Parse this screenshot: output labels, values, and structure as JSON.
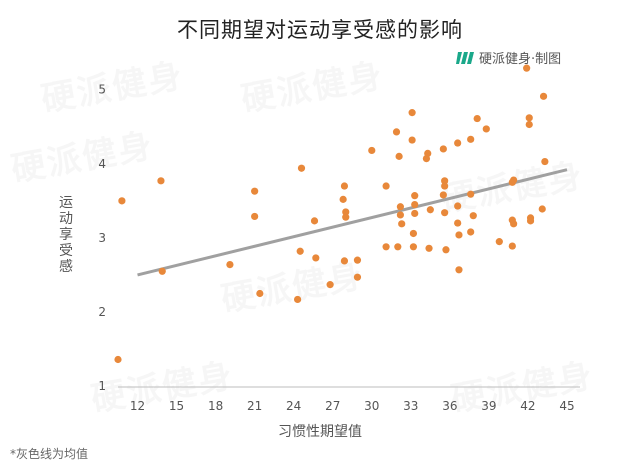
{
  "title": "不同期望对运动享受感的影响",
  "brand": {
    "name": "硬派健身·制图",
    "logo_icon": "leaf-stripes-logo",
    "accent": "#1aa88a"
  },
  "footnote": "*灰色线为均值",
  "watermark_text": "硬派健身",
  "chart_data": {
    "type": "scatter",
    "title": "不同期望对运动享受感的影响",
    "xlabel": "习惯性期望值",
    "ylabel": "运动享受感",
    "xlim": [
      10.5,
      46
    ],
    "ylim": [
      0.8,
      5.4
    ],
    "xticks": [
      12,
      15,
      18,
      21,
      24,
      27,
      30,
      33,
      36,
      39,
      42,
      45
    ],
    "yticks": [
      1,
      2,
      3,
      4,
      5
    ],
    "grid": false,
    "point_color": "#e8883a",
    "trend_color": "#a0a0a0",
    "trend_line": {
      "x": [
        12.0,
        45.0
      ],
      "y": [
        2.5,
        3.92
      ]
    },
    "points": [
      [
        10.5,
        1.36
      ],
      [
        10.8,
        3.5
      ],
      [
        13.8,
        3.77
      ],
      [
        13.9,
        2.55
      ],
      [
        19.1,
        2.64
      ],
      [
        21.0,
        3.63
      ],
      [
        21.0,
        3.29
      ],
      [
        21.4,
        2.25
      ],
      [
        24.3,
        2.17
      ],
      [
        24.5,
        2.82
      ],
      [
        24.6,
        3.94
      ],
      [
        25.6,
        3.23
      ],
      [
        25.7,
        2.73
      ],
      [
        26.8,
        2.37
      ],
      [
        27.9,
        3.7
      ],
      [
        27.8,
        3.52
      ],
      [
        28.0,
        3.35
      ],
      [
        28.0,
        3.28
      ],
      [
        27.9,
        2.69
      ],
      [
        28.9,
        2.7
      ],
      [
        28.9,
        2.47
      ],
      [
        30.0,
        4.18
      ],
      [
        31.1,
        3.7
      ],
      [
        31.1,
        2.88
      ],
      [
        31.9,
        4.43
      ],
      [
        32.1,
        4.1
      ],
      [
        32.2,
        3.42
      ],
      [
        32.2,
        3.31
      ],
      [
        32.3,
        3.19
      ],
      [
        32.0,
        2.88
      ],
      [
        33.1,
        4.69
      ],
      [
        33.1,
        4.32
      ],
      [
        33.3,
        3.57
      ],
      [
        33.3,
        3.45
      ],
      [
        33.3,
        3.33
      ],
      [
        33.2,
        3.06
      ],
      [
        33.2,
        2.88
      ],
      [
        34.3,
        4.14
      ],
      [
        34.2,
        4.07
      ],
      [
        34.5,
        3.38
      ],
      [
        34.4,
        2.86
      ],
      [
        35.5,
        4.2
      ],
      [
        35.6,
        3.77
      ],
      [
        35.6,
        3.7
      ],
      [
        35.5,
        3.58
      ],
      [
        35.6,
        3.34
      ],
      [
        35.7,
        2.84
      ],
      [
        36.6,
        4.28
      ],
      [
        36.6,
        3.43
      ],
      [
        36.6,
        3.2
      ],
      [
        36.7,
        3.04
      ],
      [
        36.7,
        2.57
      ],
      [
        37.6,
        4.33
      ],
      [
        37.6,
        3.59
      ],
      [
        37.6,
        3.08
      ],
      [
        37.8,
        3.3
      ],
      [
        38.1,
        4.61
      ],
      [
        38.8,
        4.47
      ],
      [
        39.8,
        2.95
      ],
      [
        40.9,
        3.78
      ],
      [
        40.8,
        3.75
      ],
      [
        40.8,
        3.24
      ],
      [
        40.9,
        3.19
      ],
      [
        40.8,
        2.89
      ],
      [
        41.9,
        5.29
      ],
      [
        42.1,
        4.62
      ],
      [
        42.1,
        4.53
      ],
      [
        42.2,
        3.27
      ],
      [
        42.2,
        3.23
      ],
      [
        43.2,
        4.91
      ],
      [
        43.3,
        4.03
      ],
      [
        43.1,
        3.39
      ]
    ]
  }
}
